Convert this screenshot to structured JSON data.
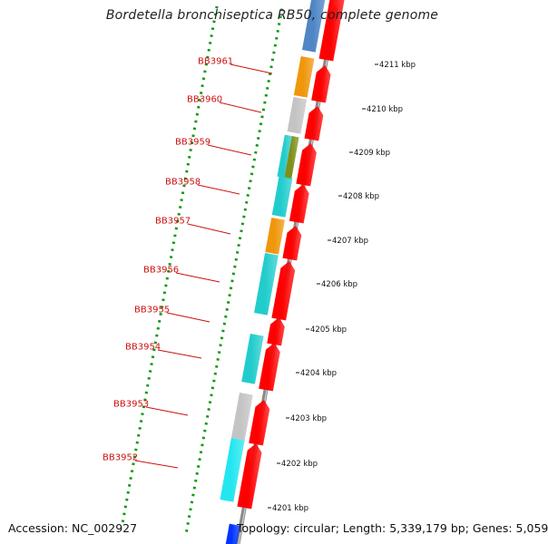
{
  "title": "Bordetella bronchiseptica RB50, complete genome",
  "accession_text": "Accession: NC_002927",
  "topology_text": "Topology: circular; Length: 5,339,179 bp; Genes: 5,059",
  "ruler_labels": [
    "4211 kbp",
    "4210 kbp",
    "4209 kbp",
    "4208 kbp",
    "4207 kbp",
    "4206 kbp",
    "4205 kbp",
    "4204 kbp",
    "4203 kbp",
    "4202 kbp",
    "4201 kbp"
  ],
  "gene_labels": [
    "BB3961",
    "BB3960",
    "BB3959",
    "BB3958",
    "BB3957",
    "BB3956",
    "BB3955",
    "BB3954",
    "BB3953",
    "BB3952"
  ],
  "colors": {
    "forward_cds": "#ff0000",
    "backbone": "#8a8a8a",
    "tick_green": "#119911",
    "label_red": "#cc1111",
    "steelblue": "#4f86c6",
    "orange": "#f0960a",
    "silver": "#c4c4c4",
    "teal": "#22cccc",
    "olive": "#7f8f1a",
    "cyan": "#22e6f0",
    "blue": "#0033ff"
  }
}
